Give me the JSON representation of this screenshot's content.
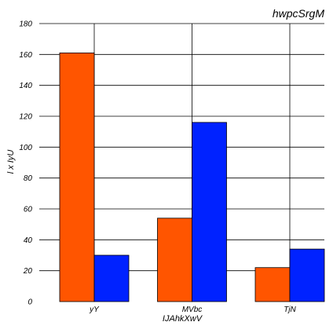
{
  "chart_data": {
    "type": "bar",
    "title": "hwpcSrgM",
    "xlabel": "IJAhkXwV",
    "ylabel": "l x IyU",
    "categories": [
      "yY",
      "MVbc",
      "TjN"
    ],
    "series": [
      {
        "color": "#ff5500",
        "values": [
          161,
          54,
          22
        ]
      },
      {
        "color": "#0022ff",
        "values": [
          30,
          116,
          34
        ]
      }
    ],
    "ylim": [
      0,
      180
    ],
    "yticks": [
      0,
      20,
      40,
      60,
      80,
      100,
      120,
      140,
      160,
      180
    ],
    "grid": true
  }
}
